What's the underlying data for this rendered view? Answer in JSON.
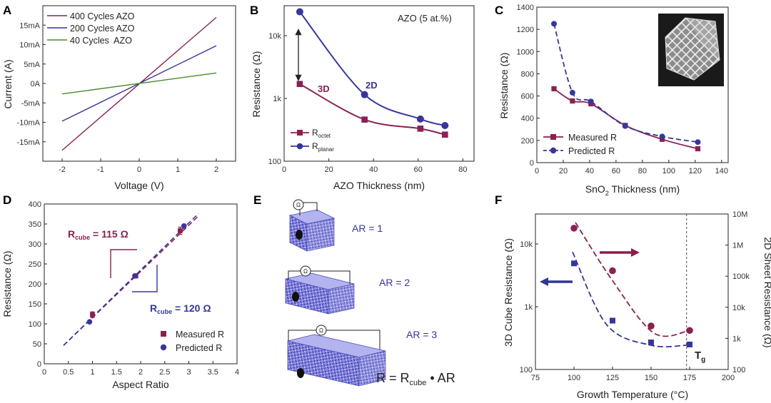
{
  "colors": {
    "maroon": "#8a2151",
    "navy": "#38359b",
    "green": "#4e8a2e",
    "red_arrow": "#8c1d4b",
    "blue_arrow": "#2f3590",
    "lattice": "#6f6fd8",
    "gray": "#555555"
  },
  "panels": {
    "A": {
      "label": "A",
      "xlabel": "Voltage (V)",
      "ylabel": "Current (A)",
      "legend": [
        "400 Cycles AZO",
        "200 Cycles AZO",
        "40 Cycles  AZO"
      ]
    },
    "B": {
      "label": "B",
      "xlabel": "AZO Thickness (nm)",
      "ylabel": "Resistance (Ω)",
      "annotation": "AZO (5 at.%)",
      "label_3d": "3D",
      "label_2d": "2D",
      "legend": [
        {
          "base": "R",
          "sub": "octet"
        },
        {
          "base": "R",
          "sub": "planar"
        }
      ]
    },
    "C": {
      "label": "C",
      "xlabel_base": "SnO",
      "xlabel_sub": "2",
      "xlabel_rest": " Thickness (nm)",
      "ylabel": "Resistance (Ω)",
      "legend": [
        "Measured R",
        "Predicted R"
      ]
    },
    "D": {
      "label": "D",
      "xlabel": "Aspect Ratio",
      "ylabel": "Resistance (Ω)",
      "annot_top": {
        "base": "R",
        "sub": "cube",
        "rest": " = 115 Ω"
      },
      "annot_bottom": {
        "base": "R",
        "sub": "cube",
        "rest": " = 120 Ω"
      },
      "legend": [
        "Measured R",
        "Predicted R"
      ]
    },
    "E": {
      "label": "E",
      "ar_labels": [
        "AR = 1",
        "AR = 2",
        "AR = 3"
      ],
      "ohm_symbol": "Ω",
      "formula_left": "R = R",
      "formula_sub": "cube",
      "formula_right": " • AR"
    },
    "F": {
      "label": "F",
      "xlabel": "Growth Temperature (°C)",
      "ylabel_left": "3D Cube Resistance (Ω)",
      "ylabel_right": "2D Sheet Resistance (Ω)",
      "tg_base": "T",
      "tg_sub": "g"
    }
  },
  "chart_data": [
    {
      "panel": "A",
      "type": "line",
      "title": "",
      "xlabel": "Voltage (V)",
      "ylabel": "Current (A)",
      "xlim": [
        -2.5,
        2.5
      ],
      "ylim": [
        -20,
        20
      ],
      "x_ticks": [
        -2,
        -1,
        0,
        1,
        2
      ],
      "x_tick_labels": [
        "-2",
        "-1",
        "0",
        "1",
        "2"
      ],
      "y_ticks": [
        -15,
        -10,
        -5,
        0,
        5,
        10,
        15
      ],
      "y_tick_labels": [
        "-15mA",
        "-10mA",
        "-5mA",
        "0A",
        "5mA",
        "10mA",
        "15mA"
      ],
      "series": [
        {
          "name": "400 Cycles AZO",
          "color": "#8a2151",
          "x": [
            -2,
            2
          ],
          "y": [
            -17.2,
            17.0
          ]
        },
        {
          "name": "200 Cycles AZO",
          "color": "#38359b",
          "x": [
            -2,
            2
          ],
          "y": [
            -9.7,
            9.7
          ]
        },
        {
          "name": "40 Cycles  AZO",
          "color": "#4e8a2e",
          "x": [
            -2,
            2
          ],
          "y": [
            -2.7,
            2.7
          ]
        }
      ]
    },
    {
      "panel": "B",
      "type": "line",
      "xlabel": "AZO Thickness (nm)",
      "ylabel": "Resistance (Ω)",
      "yscale": "log",
      "xlim": [
        0,
        85
      ],
      "ylim": [
        100,
        30000
      ],
      "x_ticks": [
        0,
        20,
        40,
        60,
        80
      ],
      "x_tick_labels": [
        "0",
        "20",
        "40",
        "60",
        "80"
      ],
      "y_ticks": [
        100,
        1000,
        10000
      ],
      "y_tick_labels": [
        "100",
        "1k",
        "10k"
      ],
      "series": [
        {
          "name": "R_octet",
          "color": "#8a2151",
          "marker": "square",
          "x": [
            7,
            36,
            61,
            72
          ],
          "y": [
            1700,
            460,
            330,
            265
          ]
        },
        {
          "name": "R_planar",
          "color": "#38359b",
          "marker": "circle",
          "x": [
            7,
            36,
            61,
            72
          ],
          "y": [
            24000,
            1150,
            470,
            370
          ]
        }
      ]
    },
    {
      "panel": "C",
      "type": "line",
      "xlabel": "SnO2 Thickness (nm)",
      "ylabel": "Resistance (Ω)",
      "xlim": [
        0,
        145
      ],
      "ylim": [
        0,
        1400
      ],
      "x_ticks": [
        0,
        20,
        40,
        60,
        80,
        100,
        120,
        140
      ],
      "x_tick_labels": [
        "0",
        "20",
        "40",
        "60",
        "80",
        "100",
        "120",
        "140"
      ],
      "y_ticks": [
        0,
        200,
        400,
        600,
        800,
        1000,
        1200,
        1400
      ],
      "y_tick_labels": [
        "0",
        "200",
        "400",
        "600",
        "800",
        "1000",
        "1200",
        "1400"
      ],
      "series": [
        {
          "name": "Measured R",
          "color": "#8a2151",
          "marker": "square",
          "x": [
            13,
            27,
            41,
            67,
            95,
            122
          ],
          "y": [
            665,
            555,
            530,
            335,
            210,
            125
          ]
        },
        {
          "name": "Predicted R",
          "color": "#38359b",
          "marker": "circle",
          "dashed": true,
          "x": [
            13,
            27,
            41,
            67,
            95,
            122
          ],
          "y": [
            1250,
            630,
            550,
            330,
            235,
            185
          ]
        }
      ]
    },
    {
      "panel": "D",
      "type": "scatter",
      "xlabel": "Aspect Ratio",
      "ylabel": "Resistance (Ω)",
      "xlim": [
        0,
        4
      ],
      "ylim": [
        0,
        400
      ],
      "x_ticks": [
        0,
        0.5,
        1,
        1.5,
        2,
        2.5,
        3,
        3.5,
        4
      ],
      "x_tick_labels": [
        "0",
        "0.5",
        "1",
        "1.5",
        "2",
        "2.5",
        "3",
        "3.5",
        "4"
      ],
      "y_ticks": [
        0,
        50,
        100,
        150,
        200,
        250,
        300,
        350,
        400
      ],
      "y_tick_labels": [
        "0",
        "50",
        "100",
        "150",
        "200",
        "250",
        "300",
        "350",
        "400"
      ],
      "series": [
        {
          "name": "Measured R",
          "color": "#8a2151",
          "marker": "square",
          "x": [
            1,
            1.9,
            2.82
          ],
          "y": [
            123,
            220,
            333
          ],
          "yerr": [
            7,
            5,
            9
          ]
        },
        {
          "name": "Predicted R",
          "color": "#38359b",
          "marker": "circle",
          "x": [
            0.94,
            1.88,
            2.9
          ],
          "y": [
            105,
            220,
            345
          ]
        }
      ],
      "fit_lines": [
        {
          "color": "#8a2151",
          "x": [
            0.4,
            3.2
          ],
          "y": [
            46,
            370
          ]
        },
        {
          "color": "#38359b",
          "x": [
            0.4,
            3.2
          ],
          "y": [
            46,
            376
          ]
        }
      ]
    },
    {
      "panel": "F",
      "type": "scatter",
      "xlabel": "Growth Temperature (°C)",
      "ylabel": "3D Cube Resistance (Ω)",
      "y2label": "2D Sheet Resistance (Ω)",
      "yscale": "log",
      "xlim": [
        75,
        200
      ],
      "ylim": [
        100,
        30000
      ],
      "y2lim": [
        100,
        10000000
      ],
      "x_ticks": [
        75,
        100,
        125,
        150,
        175,
        200
      ],
      "x_tick_labels": [
        "75",
        "100",
        "125",
        "150",
        "175",
        "200"
      ],
      "y_ticks": [
        100,
        1000,
        10000
      ],
      "y_tick_labels": [
        "100",
        "1k",
        "10k"
      ],
      "y2_ticks": [
        100,
        1000,
        10000,
        100000,
        1000000,
        10000000
      ],
      "y2_tick_labels": [
        "100",
        "1k",
        "10k",
        "100k",
        "1M",
        "10M"
      ],
      "vline": {
        "x": 173
      },
      "series": [
        {
          "name": "3D Cube Resistance",
          "axis": "left",
          "color": "#38359b",
          "marker": "square",
          "x": [
            100,
            125,
            150,
            175
          ],
          "y": [
            4900,
            600,
            270,
            250
          ]
        },
        {
          "name": "2D Sheet Resistance",
          "axis": "right",
          "color": "#8a2151",
          "marker": "circle",
          "x": [
            100,
            125,
            150,
            175
          ],
          "y": [
            3500000,
            150000,
            2500,
            1800
          ]
        }
      ]
    }
  ]
}
